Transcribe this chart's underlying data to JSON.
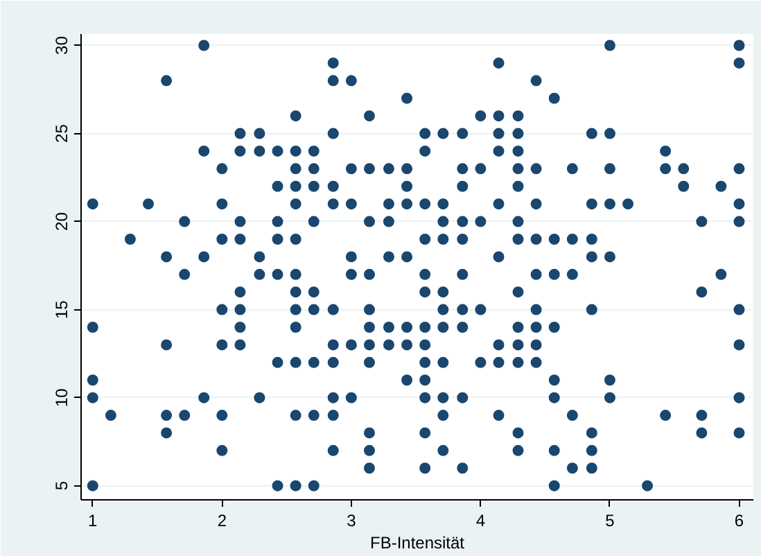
{
  "chart_data": {
    "type": "scatter",
    "xlabel": "FB-Intensität",
    "xlim": [
      0.91,
      6.11
    ],
    "ylim": [
      4.2,
      30.65
    ],
    "xticks": [
      1,
      2,
      3,
      4,
      5,
      6
    ],
    "yticks": [
      5,
      10,
      15,
      20,
      25,
      30
    ],
    "grid": "y",
    "marker": "circle",
    "series": [
      {
        "color": "#1a476f",
        "x": [
          1.86,
          5,
          6,
          2.86,
          4.14,
          6,
          1.57,
          2.86,
          3,
          4.43,
          3.43,
          4.57,
          2.57,
          3.14,
          4,
          4.14,
          4.29,
          2.14,
          2.29,
          2.86,
          3.57,
          3.71,
          3.86,
          4.14,
          4.29,
          4.86,
          5,
          1.86,
          2.14,
          2.29,
          2.43,
          2.57,
          2.71,
          3.57,
          4.14,
          4.29,
          5.43,
          2,
          2.57,
          2.71,
          3,
          3.14,
          3.29,
          3.43,
          3.86,
          4,
          4.29,
          4.43,
          4.71,
          5,
          5.43,
          5.57,
          6,
          2.43,
          2.57,
          2.71,
          2.86,
          3.43,
          3.86,
          4.29,
          5.57,
          5.86,
          1,
          1.43,
          2,
          2.57,
          2.86,
          3,
          3.29,
          3.43,
          3.57,
          3.71,
          4.14,
          4.43,
          4.86,
          5,
          5.14,
          6,
          1.71,
          2.14,
          2.43,
          2.71,
          3.14,
          3.29,
          3.71,
          3.86,
          4,
          4.29,
          5.71,
          6,
          1.29,
          2,
          2.14,
          2.43,
          2.57,
          3.57,
          3.71,
          3.86,
          4.29,
          4.43,
          4.57,
          4.71,
          4.86,
          1.57,
          1.86,
          2.29,
          3,
          3.29,
          3.43,
          4.14,
          4.86,
          5,
          1.71,
          2.29,
          2.43,
          2.57,
          3,
          3.14,
          3.57,
          3.86,
          4.43,
          4.57,
          4.71,
          5.86,
          2.14,
          2.57,
          2.71,
          3.57,
          3.71,
          4.29,
          5.71,
          2,
          2.14,
          2.57,
          2.71,
          2.86,
          3.14,
          3.71,
          3.86,
          4,
          4.43,
          4.86,
          6,
          1,
          2.14,
          2.57,
          3.14,
          3.29,
          3.43,
          3.57,
          3.71,
          3.86,
          4.29,
          4.43,
          4.57,
          1.57,
          2,
          2.14,
          2.86,
          3,
          3.14,
          3.29,
          3.43,
          3.57,
          4.14,
          4.29,
          4.43,
          6,
          2.43,
          2.57,
          2.71,
          2.86,
          3.14,
          3.57,
          3.71,
          4,
          4.14,
          4.29,
          4.43,
          1,
          3.43,
          3.57,
          4.57,
          5,
          1,
          1.86,
          2.29,
          2.86,
          3,
          3.57,
          3.71,
          3.86,
          4.57,
          5,
          6,
          1.14,
          1.57,
          1.71,
          2,
          2.57,
          2.71,
          2.86,
          3.71,
          4.14,
          4.71,
          5.43,
          5.71,
          1.57,
          3.14,
          3.57,
          4.29,
          4.86,
          5.71,
          6,
          2,
          2.86,
          3.14,
          3.71,
          4.29,
          4.57,
          4.86,
          3.14,
          3.57,
          3.86,
          4.71,
          4.86,
          1,
          2.43,
          2.57,
          2.71,
          4.57,
          5.29
        ],
        "values": [
          30,
          30,
          30,
          29,
          29,
          29,
          28,
          28,
          28,
          28,
          27,
          27,
          26,
          26,
          26,
          26,
          26,
          25,
          25,
          25,
          25,
          25,
          25,
          25,
          25,
          25,
          25,
          24,
          24,
          24,
          24,
          24,
          24,
          24,
          24,
          24,
          24,
          23,
          23,
          23,
          23,
          23,
          23,
          23,
          23,
          23,
          23,
          23,
          23,
          23,
          23,
          23,
          23,
          22,
          22,
          22,
          22,
          22,
          22,
          22,
          22,
          22,
          21,
          21,
          21,
          21,
          21,
          21,
          21,
          21,
          21,
          21,
          21,
          21,
          21,
          21,
          21,
          21,
          20,
          20,
          20,
          20,
          20,
          20,
          20,
          20,
          20,
          20,
          20,
          20,
          19,
          19,
          19,
          19,
          19,
          19,
          19,
          19,
          19,
          19,
          19,
          19,
          19,
          18,
          18,
          18,
          18,
          18,
          18,
          18,
          18,
          18,
          17,
          17,
          17,
          17,
          17,
          17,
          17,
          17,
          17,
          17,
          17,
          17,
          16,
          16,
          16,
          16,
          16,
          16,
          16,
          15,
          15,
          15,
          15,
          15,
          15,
          15,
          15,
          15,
          15,
          15,
          15,
          14,
          14,
          14,
          14,
          14,
          14,
          14,
          14,
          14,
          14,
          14,
          14,
          13,
          13,
          13,
          13,
          13,
          13,
          13,
          13,
          13,
          13,
          13,
          13,
          13,
          12,
          12,
          12,
          12,
          12,
          12,
          12,
          12,
          12,
          12,
          12,
          11,
          11,
          11,
          11,
          11,
          10,
          10,
          10,
          10,
          10,
          10,
          10,
          10,
          10,
          10,
          10,
          9,
          9,
          9,
          9,
          9,
          9,
          9,
          9,
          9,
          9,
          9,
          9,
          8,
          8,
          8,
          8,
          8,
          8,
          8,
          7,
          7,
          7,
          7,
          7,
          7,
          7,
          6,
          6,
          6,
          6,
          6,
          5,
          5,
          5,
          5,
          5,
          5
        ]
      }
    ]
  }
}
